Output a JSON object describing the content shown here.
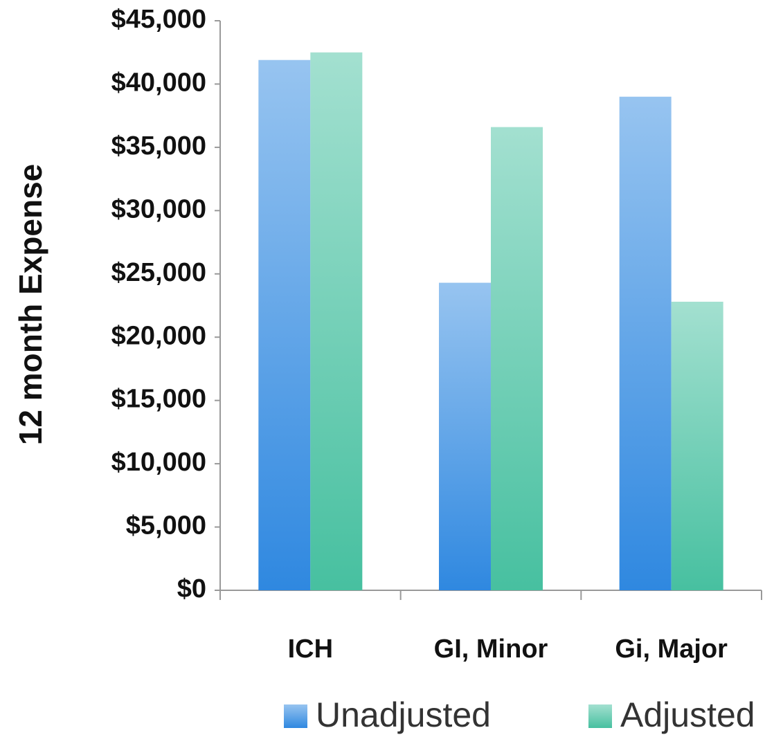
{
  "chart_data": {
    "type": "bar",
    "y_label": "12 month Expense",
    "categories": [
      "ICH",
      "GI, Minor",
      "Gi, Major"
    ],
    "series": [
      {
        "name": "Unadjusted",
        "color": "#2f88e0",
        "values": [
          41900,
          24300,
          39000
        ]
      },
      {
        "name": "Adjusted",
        "color": "#47c0a0",
        "values": [
          42500,
          36600,
          22800
        ]
      }
    ],
    "ylim": [
      0,
      45000
    ],
    "yticks": [
      {
        "value": 0,
        "label": "$0"
      },
      {
        "value": 5000,
        "label": "$5,000"
      },
      {
        "value": 10000,
        "label": "$10,000"
      },
      {
        "value": 15000,
        "label": "$15,000"
      },
      {
        "value": 20000,
        "label": "$20,000"
      },
      {
        "value": 25000,
        "label": "$25,000"
      },
      {
        "value": 30000,
        "label": "$30,000"
      },
      {
        "value": 35000,
        "label": "$35,000"
      },
      {
        "value": 40000,
        "label": "$40,000"
      },
      {
        "value": 45000,
        "label": "$45,000"
      }
    ],
    "grid": false,
    "legend": "bottom"
  }
}
